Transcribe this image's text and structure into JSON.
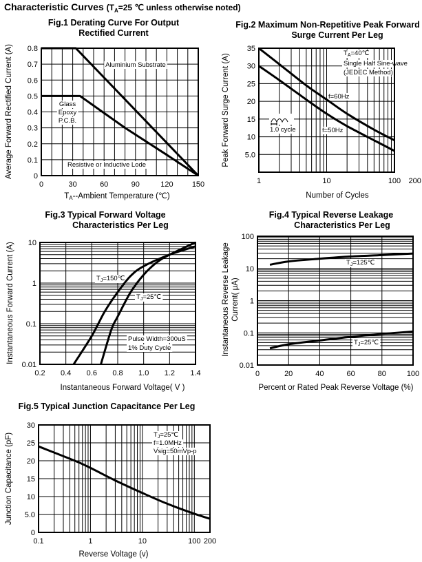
{
  "header": {
    "title": "Characteristic Curves",
    "cond_open": "(T",
    "cond_sub": "A",
    "cond_rest": "=25 ℃ unless otherwise noted)"
  },
  "chart_data": [
    {
      "type": "line",
      "title": [
        "Fig.1 Derating Curve For Output",
        "Rectified Current"
      ],
      "xlabel": {
        "pre": "T",
        "sub": "A",
        "post": "--Ambient Temperature (℃)"
      },
      "ylabel": [
        "Average Forward Rectified Current (A)"
      ],
      "xscale": "linear",
      "yscale": "linear",
      "xlim": [
        0,
        150
      ],
      "ylim": [
        0,
        0.8
      ],
      "xticks": [
        0,
        30,
        60,
        90,
        120,
        150
      ],
      "xtick_labels": [
        "0",
        "30",
        "60",
        "90",
        "120",
        "150"
      ],
      "yticks": [
        0,
        0.1,
        0.2,
        0.3,
        0.4,
        0.5,
        0.6,
        0.7,
        0.8
      ],
      "ytick_labels": [
        "0",
        "0.1",
        "0.2",
        "0.3",
        "0.4",
        "0.5",
        "0.6",
        "0.7",
        "0.8"
      ],
      "grid": true,
      "series": [
        {
          "label": "Aluminium Substrate",
          "x": [
            0,
            33,
            150
          ],
          "y": [
            0.8,
            0.8,
            0
          ]
        },
        {
          "label": "Glass Epoxy P.C.B.",
          "x": [
            0,
            37,
            80,
            120,
            150
          ],
          "y": [
            0.5,
            0.5,
            0.3,
            0.13,
            0
          ]
        }
      ],
      "annotations": [
        {
          "text": "Aluminium Substrate"
        },
        {
          "text": "Glass"
        },
        {
          "text": "Epoxy"
        },
        {
          "text": "P.C.B."
        },
        {
          "text": "Resistive or Inductive Lode"
        }
      ]
    },
    {
      "type": "line",
      "title": [
        "Fig.2 Maximum Non-Repetitive Peak Forward",
        "Surge Current Per Leg"
      ],
      "xlabel": {
        "pre": "Number of Cycles",
        "sub": "",
        "post": ""
      },
      "ylabel": [
        "Peak Forward Surge Current (A)"
      ],
      "xscale": "log",
      "yscale": "linear",
      "xlim": [
        1,
        100
      ],
      "ylim": [
        0,
        35
      ],
      "xticks": [
        1,
        10,
        100,
        200
      ],
      "xtick_labels": [
        "1",
        "10",
        "100",
        "200"
      ],
      "yticks": [
        5,
        10,
        15,
        20,
        25,
        30,
        35
      ],
      "ytick_labels": [
        "5.0",
        "10",
        "15",
        "20",
        "25",
        "30",
        "35"
      ],
      "grid": true,
      "series": [
        {
          "label": "f=60Hz",
          "x": [
            1,
            2,
            5,
            10,
            20,
            50,
            100
          ],
          "y": [
            35,
            30.5,
            24.5,
            20.5,
            16.5,
            12,
            9
          ]
        },
        {
          "label": "f=50Hz",
          "x": [
            1,
            2,
            5,
            10,
            20,
            50,
            100
          ],
          "y": [
            30,
            26,
            20.5,
            16.5,
            13,
            9,
            6
          ]
        }
      ],
      "annotations": [
        {
          "pre": "T",
          "sub": "A",
          "text": "=40℃"
        },
        {
          "text": "Single Half Sine-wave"
        },
        {
          "text": "(JEDEC Method)"
        },
        {
          "text": "f=60Hz"
        },
        {
          "text": "f=50Hz"
        },
        {
          "text": "1.0 cycle"
        }
      ]
    },
    {
      "type": "line",
      "title": [
        "Fig.3 Typical Forward Voltage",
        "Characteristics Per Leg"
      ],
      "xlabel": {
        "pre": "Instantaneous Forward Voltage( V )",
        "sub": "",
        "post": ""
      },
      "ylabel": [
        "Instantaneous Forward Current (A)"
      ],
      "xscale": "linear",
      "yscale": "log",
      "xlim": [
        0.2,
        1.4
      ],
      "ylim": [
        0.01,
        10
      ],
      "xticks": [
        0.2,
        0.4,
        0.6,
        0.8,
        1.0,
        1.2,
        1.4
      ],
      "xtick_labels": [
        "0.2",
        "0.4",
        "0.6",
        "0.8",
        "1.0",
        "1.2",
        "1.4"
      ],
      "yticks": [
        0.01,
        0.1,
        1,
        10
      ],
      "ytick_labels": [
        "0.01",
        "0.1",
        "1",
        "10"
      ],
      "grid": true,
      "series": [
        {
          "label": "TJ=150℃",
          "x": [
            0.46,
            0.6,
            0.7,
            0.8,
            0.9,
            1.0,
            1.2,
            1.4
          ],
          "y": [
            0.01,
            0.05,
            0.2,
            0.6,
            1.5,
            2.6,
            5,
            8
          ]
        },
        {
          "label": "TJ=25℃",
          "x": [
            0.67,
            0.75,
            0.8,
            0.9,
            1.0,
            1.1,
            1.2,
            1.4
          ],
          "y": [
            0.01,
            0.07,
            0.15,
            0.6,
            1.6,
            3.2,
            5,
            10
          ]
        }
      ],
      "annotations": [
        {
          "pre": "T",
          "sub": "J",
          "text": "=150℃"
        },
        {
          "pre": "T",
          "sub": "J",
          "text": "=25℃"
        },
        {
          "text": "Pulse Width=300uS"
        },
        {
          "text": "1% Duty Cycle"
        }
      ]
    },
    {
      "type": "line",
      "title": [
        "Fig.4 Typical Reverse Leakage",
        "Characteristics Per Leg"
      ],
      "xlabel": {
        "pre": "Percent or Rated Peak Reverse Voltage (%)",
        "sub": "",
        "post": ""
      },
      "ylabel": [
        "Instantaneous Reverse Leakage",
        "Current( μA)"
      ],
      "xscale": "linear",
      "yscale": "log",
      "xlim": [
        0,
        100
      ],
      "ylim": [
        0.01,
        100
      ],
      "xticks": [
        0,
        20,
        40,
        60,
        80,
        100
      ],
      "xtick_labels": [
        "0",
        "20",
        "40",
        "60",
        "80",
        "100"
      ],
      "yticks": [
        0.01,
        0.1,
        1,
        10,
        100
      ],
      "ytick_labels": [
        "0.01",
        "0.1",
        "1",
        "10",
        "100"
      ],
      "grid": true,
      "series": [
        {
          "label": "TJ=125℃",
          "x": [
            8,
            20,
            40,
            60,
            80,
            100
          ],
          "y": [
            13,
            16.5,
            20,
            23.5,
            26,
            29
          ]
        },
        {
          "label": "TJ=25℃",
          "x": [
            8,
            20,
            40,
            60,
            80,
            100
          ],
          "y": [
            0.033,
            0.044,
            0.058,
            0.075,
            0.092,
            0.11
          ]
        }
      ],
      "annotations": [
        {
          "pre": "T",
          "sub": "J",
          "text": "=125℃"
        },
        {
          "pre": "T",
          "sub": "J",
          "text": "=25℃"
        }
      ]
    },
    {
      "type": "line",
      "title": [
        "Fig.5 Typical Junction Capacitance Per Leg"
      ],
      "xlabel": {
        "pre": "Reverse Voltage (v)",
        "sub": "",
        "post": ""
      },
      "ylabel": [
        "Junction Capacitance (pF)"
      ],
      "xscale": "log",
      "yscale": "linear",
      "xlim": [
        0.1,
        200
      ],
      "ylim": [
        0,
        30
      ],
      "xticks": [
        0.1,
        1,
        10,
        100,
        200
      ],
      "xtick_labels": [
        "0.1",
        "1",
        "10",
        "100",
        "200"
      ],
      "yticks": [
        0,
        5,
        10,
        15,
        20,
        25,
        30
      ],
      "ytick_labels": [
        "0",
        "5.0",
        "10",
        "15",
        "20",
        "25",
        "30"
      ],
      "grid": true,
      "series": [
        {
          "label": "",
          "x": [
            0.1,
            0.5,
            1,
            3,
            10,
            30,
            100,
            200
          ],
          "y": [
            24,
            20,
            18,
            14.5,
            11,
            8,
            5.2,
            3.8
          ]
        }
      ],
      "annotations": [
        {
          "pre": "T",
          "sub": "J",
          "text": "=25℃"
        },
        {
          "text": "f=1.0MHz"
        },
        {
          "text": "Vsig=50mVp-p"
        }
      ]
    }
  ]
}
